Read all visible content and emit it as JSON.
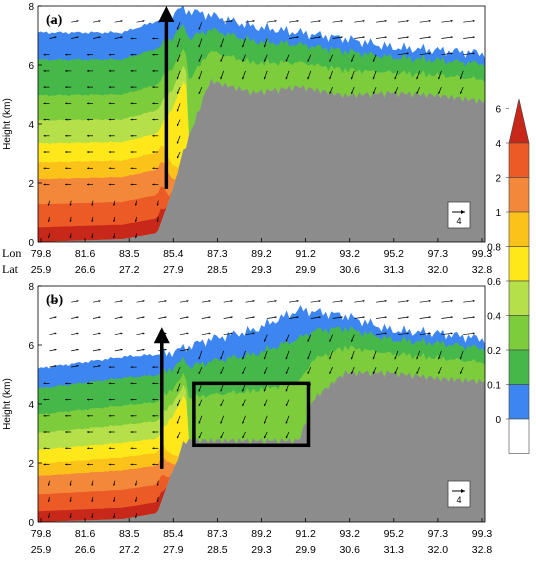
{
  "panels": [
    {
      "label": "(a)",
      "ylabel": "Height (km)",
      "yticks": [
        "0",
        "2",
        "4",
        "6",
        "8"
      ],
      "lon_label": "Lon",
      "lat_label": "Lat",
      "lon_ticks": [
        "79.8",
        "81.6",
        "83.5",
        "85.4",
        "87.3",
        "89.2",
        "91.2",
        "93.2",
        "95.2",
        "97.3",
        "99.3"
      ],
      "lat_ticks": [
        "25.9",
        "26.6",
        "27.2",
        "27.9",
        "28.5",
        "29.3",
        "29.9",
        "30.6",
        "31.3",
        "32.0",
        "32.8"
      ],
      "ref_vector_label": "4"
    },
    {
      "label": "(b)",
      "ylabel": "Height (km)",
      "yticks": [
        "0",
        "2",
        "4",
        "6",
        "8"
      ],
      "lon_ticks": [
        "79.8",
        "81.6",
        "83.5",
        "85.4",
        "87.3",
        "89.2",
        "91.2",
        "93.2",
        "95.2",
        "97.3",
        "99.3"
      ],
      "lat_ticks": [
        "25.9",
        "26.6",
        "27.2",
        "27.9",
        "28.5",
        "29.3",
        "29.9",
        "30.6",
        "31.3",
        "32.0",
        "32.8"
      ],
      "ref_vector_label": "4"
    }
  ],
  "colorbar": {
    "levels": [
      "0",
      "0.1",
      "0.2",
      "0.4",
      "0.6",
      "0.8",
      "1",
      "2",
      "4",
      "6"
    ],
    "colors": [
      "#ffffff",
      "#3d85f0",
      "#46b84a",
      "#7ccc3c",
      "#b6e04a",
      "#ffe81a",
      "#fbc21a",
      "#f4883a",
      "#ec5a26",
      "#c8281a"
    ]
  },
  "chart_data": [
    {
      "type": "heatmap",
      "panel": "(a)",
      "x_axis": {
        "label": "Lon / Lat",
        "lon": [
          79.8,
          81.6,
          83.5,
          85.4,
          87.3,
          89.2,
          91.2,
          93.2,
          95.2,
          97.3,
          99.3
        ],
        "lat": [
          25.9,
          26.6,
          27.2,
          27.9,
          28.5,
          29.3,
          29.9,
          30.6,
          31.3,
          32.0,
          32.8
        ]
      },
      "ylabel": "Height (km)",
      "ylim": [
        0,
        8
      ],
      "color_levels": [
        0,
        0.1,
        0.2,
        0.4,
        0.6,
        0.8,
        1,
        2,
        4,
        6
      ],
      "terrain_height_km": [
        [
          79.8,
          0
        ],
        [
          83.5,
          0.1
        ],
        [
          85.0,
          0.3
        ],
        [
          85.6,
          1.6
        ],
        [
          86.0,
          2.6
        ],
        [
          87.3,
          5.3
        ],
        [
          89.2,
          4.9
        ],
        [
          91.2,
          5.1
        ],
        [
          93.2,
          4.8
        ],
        [
          95.2,
          4.9
        ],
        [
          97.3,
          4.8
        ],
        [
          99.3,
          4.6
        ]
      ],
      "top_of_field_km": [
        [
          79.8,
          7.1
        ],
        [
          83.5,
          7.1
        ],
        [
          85.4,
          7.6
        ],
        [
          86.0,
          7.9
        ],
        [
          87.3,
          7.7
        ],
        [
          89.2,
          7.3
        ],
        [
          91.2,
          7.1
        ],
        [
          93.2,
          6.9
        ],
        [
          95.2,
          6.6
        ],
        [
          97.3,
          6.5
        ],
        [
          99.3,
          6.4
        ]
      ],
      "annotations": [
        {
          "type": "arrow",
          "lon": 85.4,
          "from_km": 1.8,
          "to_km": 8.0
        }
      ],
      "reference_vector": "4"
    },
    {
      "type": "heatmap",
      "panel": "(b)",
      "x_axis": {
        "label": "Lon / Lat",
        "lon": [
          79.8,
          81.6,
          83.5,
          85.4,
          87.3,
          89.2,
          91.2,
          93.2,
          95.2,
          97.3,
          99.3
        ],
        "lat": [
          25.9,
          26.6,
          27.2,
          27.9,
          28.5,
          29.3,
          29.9,
          30.6,
          31.3,
          32.0,
          32.8
        ]
      },
      "ylabel": "Height (km)",
      "ylim": [
        0,
        8
      ],
      "color_levels": [
        0,
        0.1,
        0.2,
        0.4,
        0.6,
        0.8,
        1,
        2,
        4,
        6
      ],
      "terrain_height_km": [
        [
          79.8,
          0
        ],
        [
          83.5,
          0.1
        ],
        [
          85.0,
          0.3
        ],
        [
          85.6,
          1.6
        ],
        [
          86.2,
          2.6
        ],
        [
          87.3,
          2.6
        ],
        [
          89.2,
          2.6
        ],
        [
          91.2,
          2.6
        ],
        [
          91.8,
          4.0
        ],
        [
          93.2,
          4.9
        ],
        [
          95.2,
          4.9
        ],
        [
          97.3,
          4.7
        ],
        [
          99.3,
          4.6
        ]
      ],
      "top_of_field_km": [
        [
          79.8,
          5.2
        ],
        [
          83.5,
          5.6
        ],
        [
          85.4,
          5.7
        ],
        [
          87.3,
          6.2
        ],
        [
          89.2,
          6.5
        ],
        [
          91.2,
          7.2
        ],
        [
          93.2,
          7.0
        ],
        [
          95.2,
          6.5
        ],
        [
          97.3,
          6.4
        ],
        [
          99.3,
          6.2
        ]
      ],
      "annotations": [
        {
          "type": "arrow",
          "lon": 85.2,
          "from_km": 1.8,
          "to_km": 6.6
        },
        {
          "type": "box",
          "lon": [
            86.6,
            91.6
          ],
          "height_km": [
            2.6,
            4.7
          ]
        }
      ],
      "reference_vector": "4"
    }
  ]
}
